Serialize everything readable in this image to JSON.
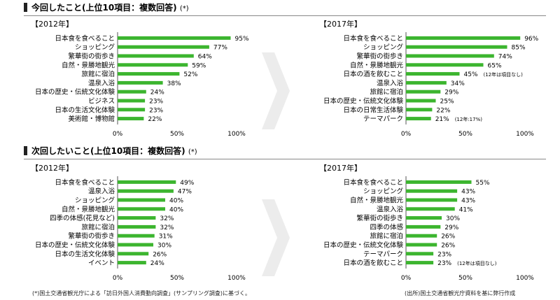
{
  "sections": [
    {
      "title": "今回したこと(上位10項目：複数回答)",
      "note": "(*)"
    },
    {
      "title": "次回したいこと(上位10項目：複数回答)",
      "note": "(*)"
    }
  ],
  "footer": {
    "left": "(*)国土交通省観光庁による「訪日外国人消費動向調査」(サンプリング調査)に基づく。",
    "right": "(出所)国土交通省観光庁資料を基に弊行作成"
  },
  "colors": {
    "bar": "#3cb52f",
    "axis": "#555555",
    "arrow": "#ececec"
  },
  "chart_data": [
    {
      "type": "bar",
      "orientation": "horizontal",
      "title": "【2012年】",
      "categories": [
        "日本食を食べること",
        "ショッピング",
        "繁華街の街歩き",
        "自然・景勝地観光",
        "旅館に宿泊",
        "温泉入浴",
        "日本の歴史・伝統文化体験",
        "ビジネス",
        "日本の生活文化体験",
        "美術館・博物館"
      ],
      "values": [
        95,
        77,
        64,
        59,
        52,
        38,
        24,
        23,
        23,
        22
      ],
      "value_labels": [
        "95%",
        "77%",
        "64%",
        "59%",
        "52%",
        "38%",
        "24%",
        "23%",
        "23%",
        "22%"
      ],
      "notes": [
        "",
        "",
        "",
        "",
        "",
        "",
        "",
        "",
        "",
        ""
      ],
      "xticks": [
        "0%",
        "50%",
        "100%"
      ],
      "xlim": [
        0,
        100
      ]
    },
    {
      "type": "bar",
      "orientation": "horizontal",
      "title": "【2017年】",
      "categories": [
        "日本食を食べること",
        "ショッピング",
        "繁華街の街歩き",
        "自然・景勝地観光",
        "日本の酒を飲むこと",
        "温泉入浴",
        "旅館に宿泊",
        "日本の歴史・伝統文化体験",
        "日本の日常生活体験",
        "テーマパーク"
      ],
      "values": [
        96,
        85,
        74,
        65,
        45,
        34,
        29,
        25,
        22,
        21
      ],
      "value_labels": [
        "96%",
        "85%",
        "74%",
        "65%",
        "45%",
        "34%",
        "29%",
        "25%",
        "22%",
        "21%"
      ],
      "notes": [
        "",
        "",
        "",
        "",
        "(12年は項目なし)",
        "",
        "",
        "",
        "",
        "(12年:17%)"
      ],
      "xticks": [
        "0%",
        "50%",
        "100%"
      ],
      "xlim": [
        0,
        100
      ]
    },
    {
      "type": "bar",
      "orientation": "horizontal",
      "title": "【2012年】",
      "categories": [
        "日本食を食べること",
        "温泉入浴",
        "ショッピング",
        "自然・景勝地観光",
        "四季の体感(花見など)",
        "旅館に宿泊",
        "繁華街の街歩き",
        "日本の歴史・伝統文化体験",
        "日本の生活文化体験",
        "イベント"
      ],
      "values": [
        49,
        47,
        40,
        40,
        32,
        32,
        31,
        30,
        26,
        24
      ],
      "value_labels": [
        "49%",
        "47%",
        "40%",
        "40%",
        "32%",
        "32%",
        "31%",
        "30%",
        "26%",
        "24%"
      ],
      "notes": [
        "",
        "",
        "",
        "",
        "",
        "",
        "",
        "",
        "",
        ""
      ],
      "xticks": [
        "0%",
        "50%",
        "100%"
      ],
      "xlim": [
        0,
        100
      ]
    },
    {
      "type": "bar",
      "orientation": "horizontal",
      "title": "【2017年】",
      "categories": [
        "日本食を食べること",
        "ショッピング",
        "自然・景勝地観光",
        "温泉入浴",
        "繁華街の街歩き",
        "四季の体感",
        "旅館に宿泊",
        "日本の歴史・伝統文化体験",
        "テーマパーク",
        "日本の酒を飲むこと"
      ],
      "values": [
        55,
        43,
        43,
        41,
        30,
        29,
        26,
        26,
        23,
        23
      ],
      "value_labels": [
        "55%",
        "43%",
        "43%",
        "41%",
        "30%",
        "29%",
        "26%",
        "26%",
        "23%",
        "23%"
      ],
      "notes": [
        "",
        "",
        "",
        "",
        "",
        "",
        "",
        "",
        "",
        "(12年は項目なし)"
      ],
      "xticks": [
        "0%",
        "50%",
        "100%"
      ],
      "xlim": [
        0,
        100
      ]
    }
  ]
}
